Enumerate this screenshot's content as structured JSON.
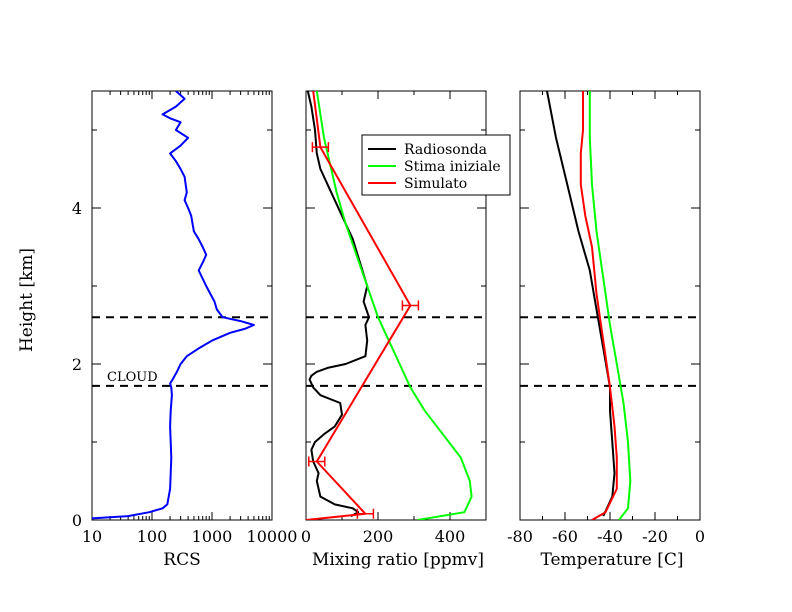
{
  "chart_data": [
    {
      "type": "line",
      "ylabel": "Height [km]",
      "xlabel": "RCS",
      "xscale": "log",
      "xlim": [
        10,
        10000
      ],
      "ylim": [
        0,
        5.5
      ],
      "xticks": [
        10,
        100,
        1000,
        10000
      ],
      "xtick_labels": [
        "10",
        "100",
        "1000",
        "10000"
      ],
      "yticks": [
        0,
        2,
        4
      ],
      "ytick_labels": [
        "0",
        "2",
        "4"
      ],
      "series": [
        {
          "color": "#0000ff",
          "x": [
            10,
            40,
            90,
            150,
            180,
            200,
            205,
            210,
            205,
            200,
            205,
            210,
            215,
            210,
            200,
            220,
            260,
            300,
            380,
            600,
            1000,
            2000,
            3500,
            5000,
            3000,
            1500,
            1200,
            1100,
            800,
            600,
            700,
            800,
            700,
            600,
            500,
            450,
            400,
            350,
            380,
            350,
            300,
            250,
            200,
            300,
            400,
            250,
            300,
            200,
            150,
            250,
            350,
            250
          ],
          "y": [
            0.02,
            0.05,
            0.1,
            0.15,
            0.2,
            0.4,
            0.6,
            0.8,
            1.0,
            1.2,
            1.4,
            1.5,
            1.6,
            1.7,
            1.75,
            1.8,
            1.9,
            2.0,
            2.1,
            2.2,
            2.3,
            2.4,
            2.45,
            2.5,
            2.55,
            2.6,
            2.7,
            2.8,
            3.0,
            3.2,
            3.3,
            3.4,
            3.5,
            3.6,
            3.7,
            3.9,
            4.0,
            4.1,
            4.2,
            4.4,
            4.5,
            4.6,
            4.7,
            4.8,
            4.9,
            5.0,
            5.1,
            5.15,
            5.2,
            5.3,
            5.4,
            5.5
          ]
        }
      ],
      "hlines": [
        1.72,
        2.6
      ],
      "annotation": "CLOUD"
    },
    {
      "type": "line",
      "xlabel": "Mixing ratio [ppmv]",
      "xlim": [
        0,
        500
      ],
      "ylim": [
        0,
        5.5
      ],
      "xticks": [
        0,
        200,
        400
      ],
      "xtick_labels": [
        "0",
        "200",
        "400"
      ],
      "legend": {
        "placement": "top-right",
        "entries": [
          {
            "label": "Radiosonda",
            "color": "#000000"
          },
          {
            "label": "Stima iniziale",
            "color": "#00ff00"
          },
          {
            "label": "Simulato",
            "color": "#ff0000"
          }
        ]
      },
      "series": [
        {
          "name": "Radiosonda",
          "color": "#000000",
          "x": [
            125,
            145,
            130,
            80,
            40,
            30,
            35,
            20,
            15,
            25,
            50,
            80,
            100,
            95,
            40,
            20,
            10,
            15,
            30,
            60,
            110,
            165,
            170,
            165,
            175,
            160,
            170,
            150,
            130,
            100,
            80,
            60,
            40,
            30,
            25,
            15,
            5
          ],
          "y": [
            0.05,
            0.1,
            0.15,
            0.2,
            0.3,
            0.5,
            0.6,
            0.75,
            0.9,
            1.0,
            1.1,
            1.2,
            1.35,
            1.5,
            1.6,
            1.7,
            1.8,
            1.85,
            1.9,
            1.95,
            2.0,
            2.1,
            2.3,
            2.5,
            2.6,
            2.8,
            3.0,
            3.3,
            3.6,
            3.9,
            4.1,
            4.3,
            4.5,
            4.7,
            5.0,
            5.3,
            5.5
          ]
        },
        {
          "name": "Stima iniziale",
          "color": "#00ff00",
          "x": [
            310,
            440,
            460,
            455,
            430,
            380,
            330,
            290,
            260,
            230,
            200,
            170,
            140,
            110,
            85,
            65,
            50,
            40,
            30
          ],
          "y": [
            0.0,
            0.1,
            0.3,
            0.5,
            0.8,
            1.1,
            1.4,
            1.7,
            2.0,
            2.3,
            2.6,
            3.0,
            3.4,
            3.8,
            4.2,
            4.6,
            4.9,
            5.2,
            5.5
          ]
        },
        {
          "name": "Simulato",
          "color": "#ff0000",
          "x": [
            0,
            165,
            30,
            290,
            40,
            20
          ],
          "y": [
            0.0,
            0.08,
            0.75,
            2.75,
            4.78,
            5.5
          ],
          "errorbar_points": [
            [
              165,
              0.08
            ],
            [
              30,
              0.75
            ],
            [
              290,
              2.75
            ],
            [
              40,
              4.78
            ]
          ]
        }
      ],
      "hlines": [
        1.72,
        2.6
      ]
    },
    {
      "type": "line",
      "xlabel": "Temperature [C]",
      "xlim": [
        -80,
        0
      ],
      "ylim": [
        0,
        5.5
      ],
      "xticks": [
        -80,
        -60,
        -40,
        -20,
        0
      ],
      "xtick_labels": [
        "-80",
        "-60",
        "-40",
        "-20",
        "0"
      ],
      "series": [
        {
          "color": "#000000",
          "x": [
            -43,
            -39,
            -38,
            -39,
            -40,
            -40,
            -43,
            -46,
            -49,
            -54,
            -59,
            -64,
            -68
          ],
          "y": [
            0.05,
            0.3,
            0.6,
            1.0,
            1.4,
            1.7,
            2.2,
            2.7,
            3.2,
            3.7,
            4.3,
            4.9,
            5.5
          ]
        },
        {
          "color": "#00ff00",
          "x": [
            -36,
            -32,
            -31,
            -32,
            -34,
            -37,
            -40,
            -43,
            -46,
            -48,
            -49,
            -49
          ],
          "y": [
            0.0,
            0.15,
            0.5,
            1.0,
            1.5,
            2.0,
            2.5,
            3.1,
            3.7,
            4.3,
            4.9,
            5.5
          ]
        },
        {
          "color": "#ff0000",
          "x": [
            -48,
            -42,
            -37,
            -37,
            -38,
            -40,
            -43,
            -46,
            -48,
            -51,
            -53,
            -53,
            -52,
            -52
          ],
          "y": [
            0.0,
            0.1,
            0.4,
            0.8,
            1.2,
            1.7,
            2.3,
            2.9,
            3.5,
            3.9,
            4.3,
            4.7,
            5.0,
            5.5
          ]
        }
      ],
      "hlines": [
        1.72,
        2.6
      ]
    }
  ]
}
